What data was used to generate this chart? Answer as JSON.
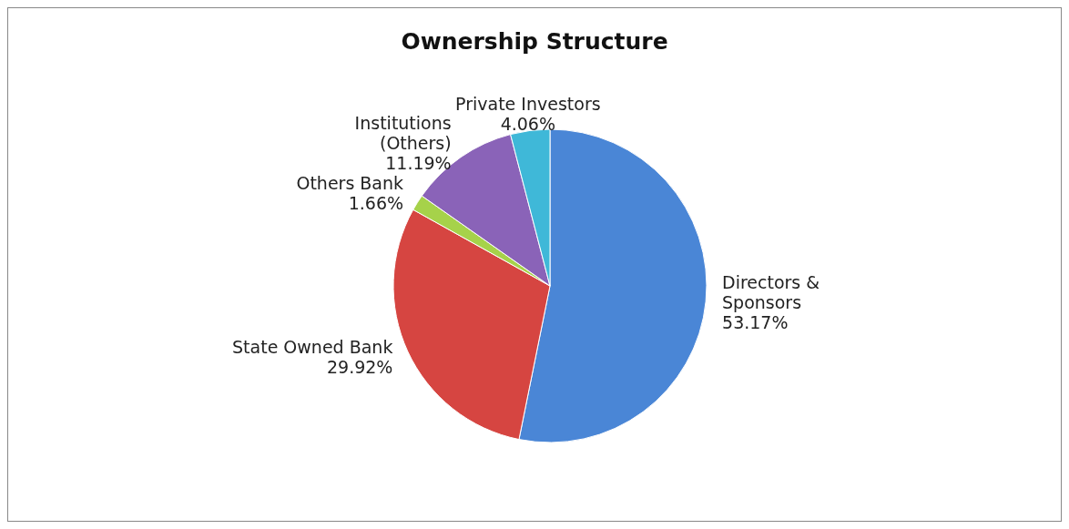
{
  "chart_data": {
    "type": "pie",
    "title": "Ownership Structure",
    "categories": [
      "Directors & Sponsors",
      "State Owned Bank",
      "Others Bank",
      "Institutions (Others)",
      "Private Investors"
    ],
    "values": [
      53.17,
      29.92,
      1.66,
      11.19,
      4.06
    ],
    "value_labels": [
      "53.17%",
      "29.92%",
      "1.66%",
      "11.19%",
      "4.06%"
    ],
    "colors": [
      "#4a86d6",
      "#d64541",
      "#a6d24a",
      "#8a63b8",
      "#3fb8d8"
    ],
    "legend": false
  }
}
